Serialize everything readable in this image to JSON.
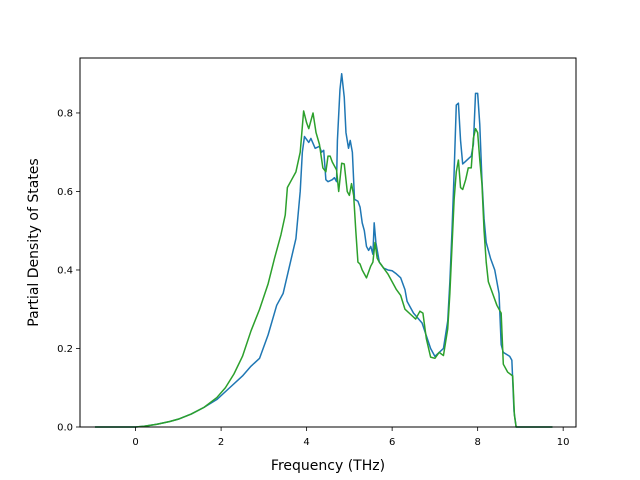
{
  "chart_data": {
    "type": "line",
    "title": "",
    "xlabel": "Frequency (THz)",
    "ylabel": "Partial Density of States",
    "xlim": [
      -1.3,
      10.3
    ],
    "ylim": [
      0.0,
      0.94
    ],
    "xticks": [
      0,
      2,
      4,
      6,
      8,
      10
    ],
    "xtick_labels": [
      "0",
      "2",
      "4",
      "6",
      "8",
      "10"
    ],
    "yticks": [
      0.0,
      0.2,
      0.4,
      0.6,
      0.8
    ],
    "ytick_labels": [
      "0.0",
      "0.2",
      "0.4",
      "0.6",
      "0.8"
    ],
    "grid": false,
    "legend": false,
    "series": [
      {
        "color": "#1f77b4",
        "points": [
          [
            -0.95,
            0.0
          ],
          [
            0.0,
            0.0
          ],
          [
            0.2,
            0.002
          ],
          [
            0.5,
            0.007
          ],
          [
            0.8,
            0.014
          ],
          [
            1.0,
            0.02
          ],
          [
            1.3,
            0.033
          ],
          [
            1.6,
            0.05
          ],
          [
            1.9,
            0.07
          ],
          [
            2.2,
            0.1
          ],
          [
            2.5,
            0.13
          ],
          [
            2.7,
            0.155
          ],
          [
            2.9,
            0.175
          ],
          [
            3.1,
            0.235
          ],
          [
            3.3,
            0.31
          ],
          [
            3.45,
            0.34
          ],
          [
            3.6,
            0.41
          ],
          [
            3.75,
            0.48
          ],
          [
            3.85,
            0.6
          ],
          [
            3.9,
            0.7
          ],
          [
            3.95,
            0.74
          ],
          [
            4.05,
            0.725
          ],
          [
            4.1,
            0.735
          ],
          [
            4.2,
            0.71
          ],
          [
            4.3,
            0.715
          ],
          [
            4.35,
            0.7
          ],
          [
            4.4,
            0.705
          ],
          [
            4.45,
            0.63
          ],
          [
            4.5,
            0.625
          ],
          [
            4.6,
            0.63
          ],
          [
            4.65,
            0.635
          ],
          [
            4.7,
            0.625
          ],
          [
            4.72,
            0.73
          ],
          [
            4.78,
            0.86
          ],
          [
            4.82,
            0.9
          ],
          [
            4.88,
            0.84
          ],
          [
            4.92,
            0.75
          ],
          [
            4.98,
            0.71
          ],
          [
            5.02,
            0.73
          ],
          [
            5.07,
            0.7
          ],
          [
            5.12,
            0.58
          ],
          [
            5.2,
            0.575
          ],
          [
            5.25,
            0.56
          ],
          [
            5.3,
            0.52
          ],
          [
            5.35,
            0.5
          ],
          [
            5.4,
            0.46
          ],
          [
            5.45,
            0.45
          ],
          [
            5.5,
            0.46
          ],
          [
            5.55,
            0.44
          ],
          [
            5.58,
            0.52
          ],
          [
            5.62,
            0.47
          ],
          [
            5.7,
            0.42
          ],
          [
            5.8,
            0.405
          ],
          [
            5.9,
            0.4
          ],
          [
            6.0,
            0.398
          ],
          [
            6.1,
            0.39
          ],
          [
            6.2,
            0.38
          ],
          [
            6.3,
            0.35
          ],
          [
            6.35,
            0.32
          ],
          [
            6.5,
            0.29
          ],
          [
            6.7,
            0.265
          ],
          [
            6.9,
            0.2
          ],
          [
            7.0,
            0.18
          ],
          [
            7.1,
            0.19
          ],
          [
            7.2,
            0.2
          ],
          [
            7.3,
            0.27
          ],
          [
            7.35,
            0.37
          ],
          [
            7.4,
            0.5
          ],
          [
            7.45,
            0.65
          ],
          [
            7.5,
            0.82
          ],
          [
            7.55,
            0.825
          ],
          [
            7.6,
            0.73
          ],
          [
            7.65,
            0.67
          ],
          [
            7.7,
            0.675
          ],
          [
            7.8,
            0.685
          ],
          [
            7.85,
            0.69
          ],
          [
            7.9,
            0.72
          ],
          [
            7.95,
            0.85
          ],
          [
            8.0,
            0.85
          ],
          [
            8.05,
            0.77
          ],
          [
            8.1,
            0.63
          ],
          [
            8.15,
            0.53
          ],
          [
            8.2,
            0.47
          ],
          [
            8.3,
            0.43
          ],
          [
            8.4,
            0.4
          ],
          [
            8.5,
            0.34
          ],
          [
            8.55,
            0.21
          ],
          [
            8.6,
            0.19
          ],
          [
            8.75,
            0.18
          ],
          [
            8.8,
            0.17
          ],
          [
            8.85,
            0.04
          ],
          [
            8.9,
            0.0
          ],
          [
            9.75,
            0.0
          ]
        ]
      },
      {
        "color": "#2ca02c",
        "points": [
          [
            -0.95,
            0.0
          ],
          [
            0.0,
            0.0
          ],
          [
            0.2,
            0.002
          ],
          [
            0.5,
            0.007
          ],
          [
            0.8,
            0.014
          ],
          [
            1.0,
            0.02
          ],
          [
            1.3,
            0.033
          ],
          [
            1.6,
            0.05
          ],
          [
            1.9,
            0.075
          ],
          [
            2.1,
            0.1
          ],
          [
            2.3,
            0.135
          ],
          [
            2.5,
            0.18
          ],
          [
            2.7,
            0.245
          ],
          [
            2.9,
            0.3
          ],
          [
            3.1,
            0.365
          ],
          [
            3.25,
            0.43
          ],
          [
            3.4,
            0.49
          ],
          [
            3.5,
            0.54
          ],
          [
            3.55,
            0.61
          ],
          [
            3.65,
            0.63
          ],
          [
            3.75,
            0.65
          ],
          [
            3.85,
            0.7
          ],
          [
            3.93,
            0.805
          ],
          [
            4.0,
            0.775
          ],
          [
            4.05,
            0.76
          ],
          [
            4.15,
            0.8
          ],
          [
            4.22,
            0.75
          ],
          [
            4.3,
            0.72
          ],
          [
            4.38,
            0.66
          ],
          [
            4.45,
            0.65
          ],
          [
            4.5,
            0.69
          ],
          [
            4.55,
            0.69
          ],
          [
            4.6,
            0.675
          ],
          [
            4.7,
            0.655
          ],
          [
            4.75,
            0.6
          ],
          [
            4.82,
            0.672
          ],
          [
            4.88,
            0.67
          ],
          [
            4.95,
            0.6
          ],
          [
            5.0,
            0.59
          ],
          [
            5.05,
            0.62
          ],
          [
            5.1,
            0.59
          ],
          [
            5.15,
            0.5
          ],
          [
            5.2,
            0.42
          ],
          [
            5.25,
            0.415
          ],
          [
            5.3,
            0.4
          ],
          [
            5.4,
            0.38
          ],
          [
            5.5,
            0.41
          ],
          [
            5.55,
            0.42
          ],
          [
            5.6,
            0.47
          ],
          [
            5.65,
            0.43
          ],
          [
            5.7,
            0.42
          ],
          [
            5.8,
            0.405
          ],
          [
            5.9,
            0.39
          ],
          [
            6.0,
            0.37
          ],
          [
            6.1,
            0.35
          ],
          [
            6.2,
            0.335
          ],
          [
            6.3,
            0.3
          ],
          [
            6.45,
            0.285
          ],
          [
            6.55,
            0.275
          ],
          [
            6.65,
            0.295
          ],
          [
            6.72,
            0.29
          ],
          [
            6.8,
            0.225
          ],
          [
            6.9,
            0.178
          ],
          [
            7.0,
            0.175
          ],
          [
            7.1,
            0.19
          ],
          [
            7.2,
            0.182
          ],
          [
            7.3,
            0.25
          ],
          [
            7.35,
            0.34
          ],
          [
            7.4,
            0.46
          ],
          [
            7.45,
            0.58
          ],
          [
            7.5,
            0.65
          ],
          [
            7.55,
            0.68
          ],
          [
            7.6,
            0.61
          ],
          [
            7.65,
            0.605
          ],
          [
            7.72,
            0.63
          ],
          [
            7.78,
            0.66
          ],
          [
            7.85,
            0.66
          ],
          [
            7.9,
            0.735
          ],
          [
            7.95,
            0.76
          ],
          [
            8.0,
            0.75
          ],
          [
            8.05,
            0.68
          ],
          [
            8.1,
            0.62
          ],
          [
            8.15,
            0.5
          ],
          [
            8.2,
            0.42
          ],
          [
            8.25,
            0.37
          ],
          [
            8.35,
            0.34
          ],
          [
            8.45,
            0.31
          ],
          [
            8.55,
            0.29
          ],
          [
            8.6,
            0.16
          ],
          [
            8.7,
            0.14
          ],
          [
            8.82,
            0.13
          ],
          [
            8.86,
            0.03
          ],
          [
            8.9,
            0.0
          ],
          [
            9.75,
            0.0
          ]
        ]
      }
    ]
  }
}
